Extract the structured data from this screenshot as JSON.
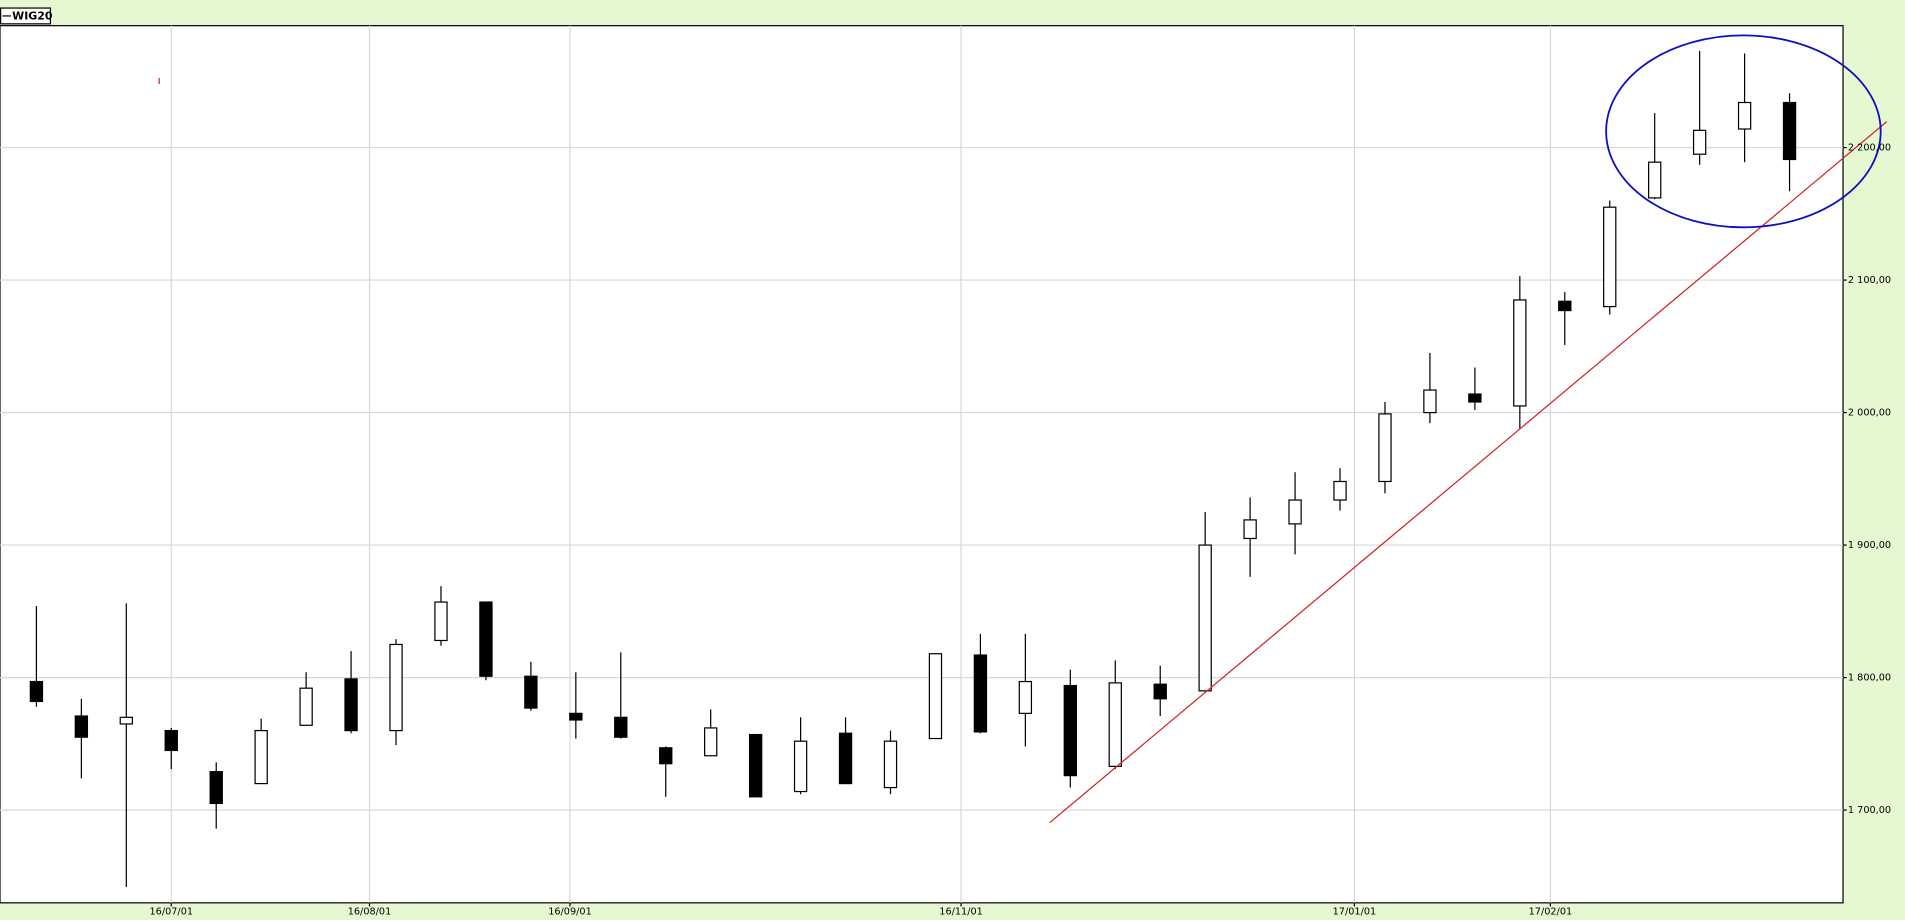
{
  "chart_data": {
    "type": "candlestick",
    "categories": [
      null,
      null,
      null,
      null,
      null,
      null,
      null,
      null,
      null,
      null,
      null,
      null,
      null,
      null,
      null,
      null,
      null,
      null,
      null,
      null,
      null,
      null,
      null,
      null,
      null,
      null,
      null,
      null,
      null,
      null,
      null,
      null,
      null,
      null,
      null,
      null,
      null,
      null,
      null,
      null
    ],
    "series": [
      {
        "name": "WIG20",
        "up_color": "#ffffff",
        "down_color": "#000000",
        "open": [
          1797,
          1771,
          1765,
          1760,
          1729,
          1720,
          1764,
          1799,
          1760,
          1828,
          1857,
          1801,
          1773,
          1770,
          1747,
          1741,
          1757,
          1714,
          1758,
          1717,
          1754,
          1817,
          1773,
          1794,
          1733,
          1795,
          1790,
          1905,
          1916,
          1934,
          1948,
          2000,
          2014,
          2005,
          2084,
          2080,
          2162,
          2195,
          2214,
          2234
        ],
        "high": [
          1854,
          1784,
          1856,
          1762,
          1736,
          1769,
          1804,
          1820,
          1829,
          1869,
          1857,
          1812,
          1804,
          1819,
          1748,
          1776,
          1757,
          1770,
          1770,
          1760,
          1818,
          1833,
          1833,
          1806,
          1813,
          1809,
          1925,
          1936,
          1955,
          1958,
          2008,
          2045,
          2034,
          2103,
          2091,
          2160,
          2226,
          2273,
          2271,
          2241
        ],
        "low": [
          1778,
          1724,
          1642,
          1731,
          1686,
          1720,
          1764,
          1758,
          1749,
          1824,
          1798,
          1775,
          1754,
          1754,
          1710,
          1741,
          1710,
          1712,
          1720,
          1712,
          1754,
          1758,
          1748,
          1717,
          1731,
          1771,
          1790,
          1876,
          1893,
          1926,
          1939,
          1992,
          2002,
          1988,
          2051,
          2074,
          2161,
          2187,
          2189,
          2167
        ],
        "close": [
          1782,
          1755,
          1770,
          1745,
          1705,
          1760,
          1792,
          1760,
          1825,
          1857,
          1801,
          1777,
          1768,
          1755,
          1735,
          1762,
          1710,
          1752,
          1720,
          1752,
          1818,
          1759,
          1797,
          1726,
          1796,
          1784,
          1900,
          1919,
          1934,
          1948,
          1999,
          2017,
          2008,
          2085,
          2077,
          2155,
          2189,
          2213,
          2234,
          2191
        ]
      }
    ],
    "xlim": [
      -0.81,
      40.19
    ],
    "xticks": [
      {
        "value": 3.0,
        "label": "16/07/01"
      },
      {
        "value": 7.41,
        "label": "16/08/01"
      },
      {
        "value": 11.87,
        "label": "16/09/01"
      },
      {
        "value": 20.57,
        "label": "16/11/01"
      },
      {
        "value": 29.32,
        "label": "17/01/01"
      },
      {
        "value": 33.68,
        "label": "17/02/01"
      }
    ],
    "ylim": [
      1630,
      2292
    ],
    "yticks": [
      {
        "value": 1700,
        "label": "1 700,00"
      },
      {
        "value": 1800,
        "label": "1 800,00"
      },
      {
        "value": 1900,
        "label": "1 900,00"
      },
      {
        "value": 2000,
        "label": "2 000,00"
      },
      {
        "value": 2100,
        "label": "2 100,00"
      },
      {
        "value": 2200,
        "label": "2 200,00"
      }
    ],
    "grid": true
  }
}
